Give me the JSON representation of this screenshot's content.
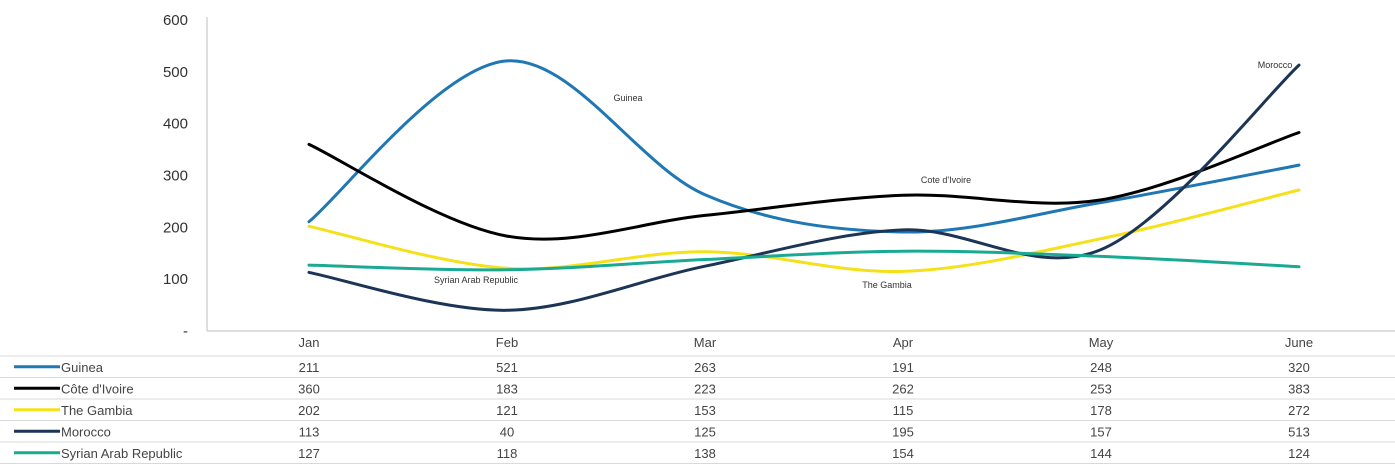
{
  "chart_data": {
    "type": "line",
    "title": "",
    "xlabel": "",
    "ylabel": "",
    "ylim": [
      0,
      600
    ],
    "yticks": [
      {
        "value": 0,
        "label": "-"
      },
      {
        "value": 100,
        "label": "100"
      },
      {
        "value": 200,
        "label": "200"
      },
      {
        "value": 300,
        "label": "300"
      },
      {
        "value": 400,
        "label": "400"
      },
      {
        "value": 500,
        "label": "500"
      },
      {
        "value": 600,
        "label": "600"
      }
    ],
    "categories": [
      "Jan",
      "Feb",
      "Mar",
      "Apr",
      "May",
      "June"
    ],
    "grid": false,
    "legend": "data-table",
    "series": [
      {
        "name": "Guinea",
        "color": "#1f77b4",
        "values": [
          211,
          521,
          263,
          191,
          248,
          320
        ]
      },
      {
        "name": "Côte d'Ivoire",
        "color": "#000000",
        "values": [
          360,
          183,
          223,
          262,
          253,
          383
        ]
      },
      {
        "name": "The Gambia",
        "color": "#f5e11a",
        "values": [
          202,
          121,
          153,
          115,
          178,
          272
        ]
      },
      {
        "name": "Morocco",
        "color": "#1c3557",
        "values": [
          113,
          40,
          125,
          195,
          157,
          513
        ]
      },
      {
        "name": "Syrian Arab Republic",
        "color": "#1aaa94",
        "values": [
          127,
          118,
          138,
          154,
          144,
          124
        ]
      }
    ],
    "annotations": [
      {
        "text": "Guinea",
        "series": 0,
        "category": "Feb"
      },
      {
        "text": "Cote d'Ivoire",
        "series": 1,
        "category": "Apr"
      },
      {
        "text": "Syrian Arab Republic",
        "series": 4,
        "category": "Feb"
      },
      {
        "text": "The Gambia",
        "series": 2,
        "category": "Apr"
      },
      {
        "text": "Morocco",
        "series": 3,
        "category": "June"
      }
    ]
  }
}
